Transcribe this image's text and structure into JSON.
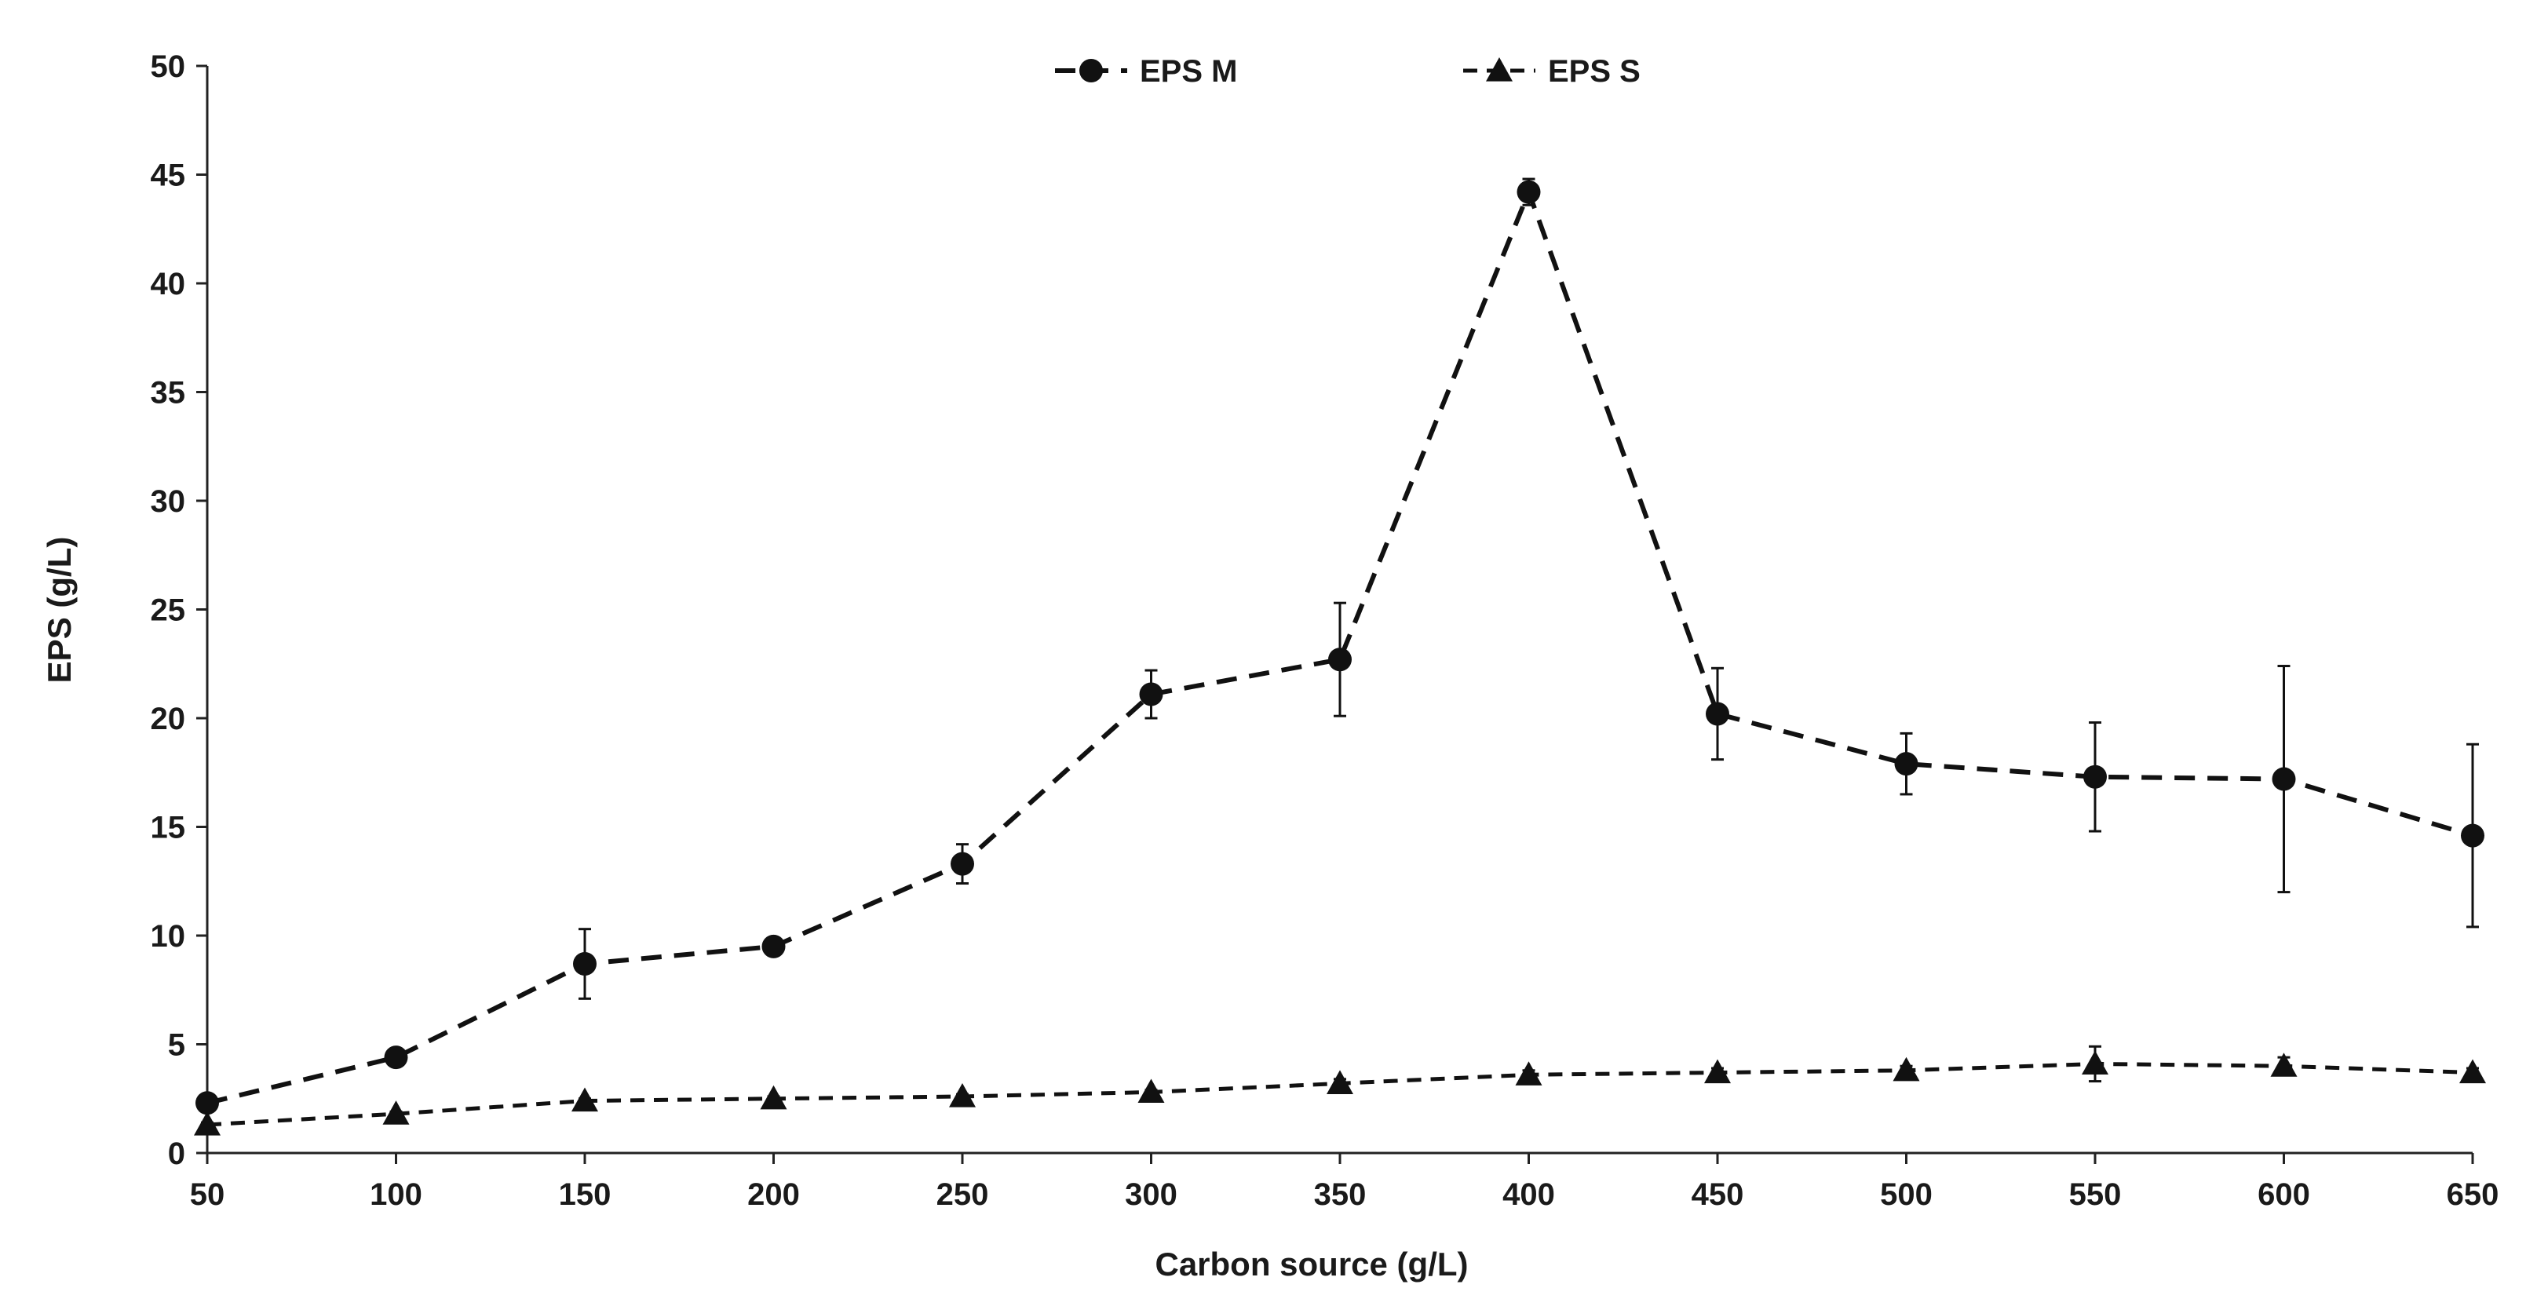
{
  "chart_data": {
    "type": "line",
    "title": "",
    "xlabel": "Carbon source (g/L)",
    "ylabel": "EPS (g/L)",
    "x": [
      50,
      100,
      150,
      200,
      250,
      300,
      350,
      400,
      450,
      500,
      550,
      600,
      650
    ],
    "x_ticks": [
      "50",
      "100",
      "150",
      "200",
      "250",
      "300",
      "350",
      "400",
      "450",
      "500",
      "550",
      "600",
      "650"
    ],
    "y_ticks": [
      "0",
      "5",
      "10",
      "15",
      "20",
      "25",
      "30",
      "35",
      "40",
      "45",
      "50"
    ],
    "xlim": [
      50,
      650
    ],
    "ylim": [
      0,
      50
    ],
    "grid": false,
    "legend_position": "top-center",
    "series": [
      {
        "name": "EPS M",
        "marker": "circle",
        "line_style": "dashed",
        "color": "#111111",
        "values": [
          2.3,
          4.4,
          8.7,
          9.5,
          13.3,
          21.1,
          22.7,
          44.2,
          20.2,
          17.9,
          17.3,
          17.2,
          14.6
        ],
        "errors": [
          0.2,
          0.3,
          1.6,
          0.3,
          0.9,
          1.1,
          2.6,
          0.6,
          2.1,
          1.4,
          2.5,
          5.2,
          4.2
        ]
      },
      {
        "name": "EPS S",
        "marker": "triangle",
        "line_style": "dashed",
        "color": "#111111",
        "values": [
          1.3,
          1.8,
          2.4,
          2.5,
          2.6,
          2.8,
          3.2,
          3.6,
          3.7,
          3.8,
          4.1,
          4.0,
          3.7
        ],
        "errors": [
          0.1,
          0.1,
          0.1,
          0.1,
          0.1,
          0.1,
          0.2,
          0.2,
          0.2,
          0.2,
          0.8,
          0.4,
          0.2
        ]
      }
    ]
  }
}
